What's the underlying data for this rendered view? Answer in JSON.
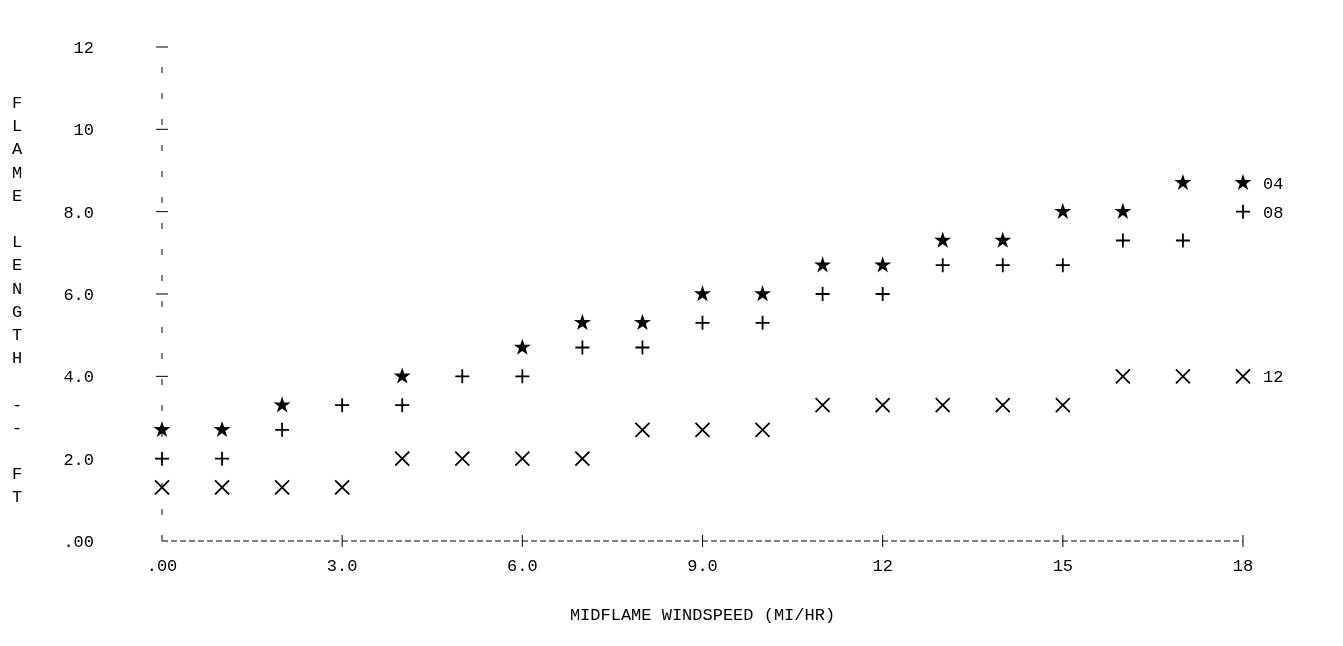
{
  "chart_data": {
    "type": "scatter",
    "xlabel": "MIDFLAME WINDSPEED (MI/HR)",
    "ylabel": "FLAME LENGTH -- FT",
    "x": [
      0,
      1,
      2,
      3,
      4,
      5,
      6,
      7,
      8,
      9,
      10,
      11,
      12,
      13,
      14,
      15,
      16,
      17,
      18
    ],
    "series": [
      {
        "name": "04",
        "color": "#000000",
        "marker": "star",
        "values": [
          2.7,
          2.7,
          3.3,
          null,
          4.0,
          null,
          4.7,
          5.3,
          5.3,
          6.0,
          6.0,
          6.7,
          6.7,
          7.3,
          7.3,
          8.0,
          8.0,
          8.7,
          8.7
        ]
      },
      {
        "name": "08",
        "color": "#000000",
        "marker": "plus",
        "values": [
          2.0,
          2.0,
          2.7,
          3.3,
          3.3,
          4.0,
          4.0,
          4.7,
          4.7,
          5.3,
          5.3,
          6.0,
          6.0,
          6.7,
          6.7,
          6.7,
          7.3,
          7.3,
          8.0
        ]
      },
      {
        "name": "12",
        "color": "#000000",
        "marker": "cross",
        "values": [
          1.3,
          1.3,
          1.3,
          1.3,
          2.0,
          2.0,
          2.0,
          2.0,
          2.7,
          2.7,
          2.7,
          3.3,
          3.3,
          3.3,
          3.3,
          3.3,
          4.0,
          4.0,
          4.0
        ]
      }
    ],
    "xlim": [
      0,
      18
    ],
    "xticks": [
      {
        "value": 0,
        "label": ".00"
      },
      {
        "value": 3,
        "label": "3.0"
      },
      {
        "value": 6,
        "label": "6.0"
      },
      {
        "value": 9,
        "label": "9.0"
      },
      12,
      15,
      18
    ],
    "ylim": [
      0,
      12
    ],
    "yticks": [
      {
        "value": 0,
        "label": ".00"
      },
      {
        "value": 2,
        "label": "2.0"
      },
      {
        "value": 4,
        "label": "4.0"
      },
      {
        "value": 6,
        "label": "6.0"
      },
      {
        "value": 8,
        "label": "8.0"
      },
      10,
      12
    ],
    "grid": false,
    "legend": false
  }
}
